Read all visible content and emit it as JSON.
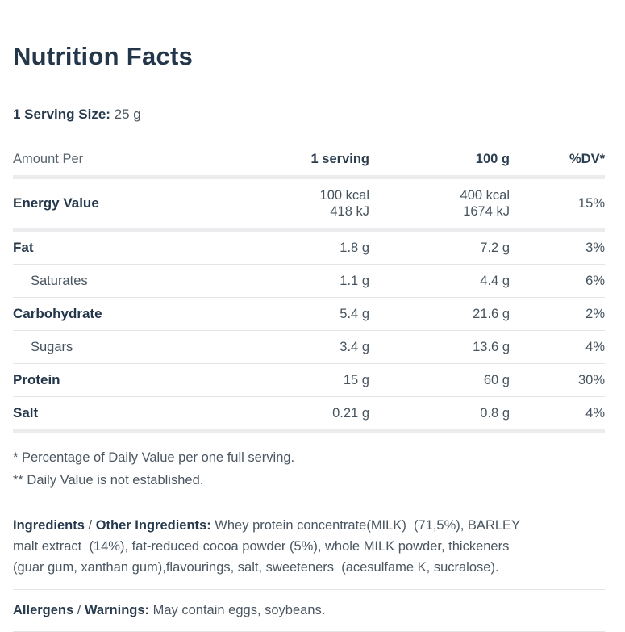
{
  "title": "Nutrition Facts",
  "serving": {
    "label": "1 Serving Size:",
    "value": "25 g"
  },
  "table": {
    "header": {
      "amount_per": "Amount Per",
      "serving": "1 serving",
      "per_100": "100 g",
      "dv": "%DV*"
    },
    "rows": [
      {
        "label": "Energy Value",
        "serving": "100 kcal\n418 kJ",
        "per100": "400 kcal\n1674 kJ",
        "dv": "15%"
      },
      {
        "label": "Fat",
        "serving": "1.8 g",
        "per100": "7.2 g",
        "dv": "3%"
      },
      {
        "label": "Saturates",
        "serving": "1.1 g",
        "per100": "4.4 g",
        "dv": "6%"
      },
      {
        "label": "Carbohydrate",
        "serving": "5.4 g",
        "per100": "21.6 g",
        "dv": "2%"
      },
      {
        "label": "Sugars",
        "serving": "3.4 g",
        "per100": "13.6 g",
        "dv": "4%"
      },
      {
        "label": "Protein",
        "serving": "15 g",
        "per100": "60 g",
        "dv": "30%"
      },
      {
        "label": "Salt",
        "serving": "0.21 g",
        "per100": "0.8 g",
        "dv": "4%"
      }
    ]
  },
  "footnotes": [
    "* Percentage of Daily Value per one full serving.",
    "** Daily Value is not established."
  ],
  "ingredients": {
    "label1": "Ingredients",
    "separator": " / ",
    "label2": "Other Ingredients:",
    "text": " Whey protein concentrate(MILK)  (71,5%), BARLEY\nmalt extract  (14%), fat-reduced cocoa powder (5%), whole MILK powder, thickeners\n(guar gum, xanthan gum),flavourings, salt, sweeteners  (acesulfame K, sucralose)."
  },
  "allergens": {
    "label1": "Allergens",
    "separator": " / ",
    "label2": "Warnings:",
    "text": " May contain eggs, soybeans."
  },
  "colors": {
    "heading_navy": "#24374a",
    "body_text": "#4a5661",
    "muted_text": "#57646f",
    "divider_thick": "#ececee",
    "divider_thin": "#e4e4e7",
    "background": "#ffffff"
  }
}
